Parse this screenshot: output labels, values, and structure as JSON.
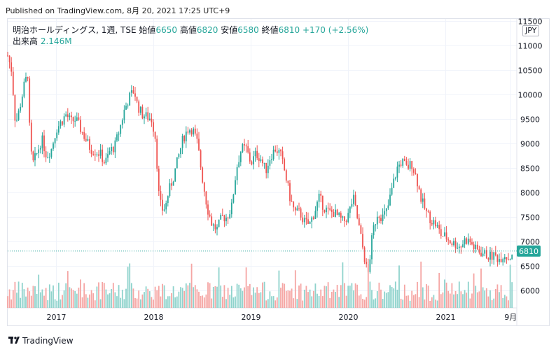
{
  "header": {
    "published": "Published on TradingView.com, 8月 20, 2021 17:25 UTC+9"
  },
  "legend": {
    "symbol": "明治ホールディングス, 1週, TSE",
    "open_label": "始値",
    "open": "6650",
    "high_label": "高値",
    "high": "6820",
    "low_label": "安値",
    "low": "6580",
    "close_label": "終値",
    "close": "6810",
    "change": "+170 (+2.56%)",
    "volume_label": "出来高",
    "volume": "2.146M"
  },
  "currency": "JPY",
  "footer": {
    "brand": "TradingView"
  },
  "colors": {
    "up": "#26a69a",
    "down": "#ef5350",
    "up_vol": "#8fd3cc",
    "down_vol": "#f5a6a4",
    "grid": "#f0f3fa"
  },
  "chart_data": {
    "type": "candlestick",
    "ylim": [
      5650,
      11550
    ],
    "y_ticks": [
      6000,
      6500,
      7000,
      7500,
      8000,
      8500,
      9000,
      9500,
      10000,
      10500,
      11000,
      11500
    ],
    "x_tick_labels": [
      "2017",
      "2018",
      "2019",
      "2020",
      "2021",
      "9月"
    ],
    "x_tick_positions": [
      2017.0,
      2018.0,
      2019.0,
      2020.0,
      2021.0,
      2021.667
    ],
    "xlim": [
      2016.5,
      2021.73
    ],
    "last_price": 6810,
    "path": [
      [
        2016.5,
        10800
      ],
      [
        2016.54,
        10500
      ],
      [
        2016.58,
        9400
      ],
      [
        2016.62,
        9700
      ],
      [
        2016.67,
        10200
      ],
      [
        2016.71,
        10450
      ],
      [
        2016.73,
        8900
      ],
      [
        2016.76,
        8600
      ],
      [
        2016.8,
        8800
      ],
      [
        2016.85,
        9100
      ],
      [
        2016.9,
        8750
      ],
      [
        2016.95,
        8900
      ],
      [
        2017.0,
        9300
      ],
      [
        2017.05,
        9450
      ],
      [
        2017.1,
        9600
      ],
      [
        2017.15,
        9450
      ],
      [
        2017.2,
        9500
      ],
      [
        2017.25,
        9300
      ],
      [
        2017.3,
        9100
      ],
      [
        2017.35,
        8900
      ],
      [
        2017.4,
        8850
      ],
      [
        2017.45,
        8800
      ],
      [
        2017.5,
        8600
      ],
      [
        2017.55,
        8850
      ],
      [
        2017.6,
        8950
      ],
      [
        2017.65,
        9300
      ],
      [
        2017.7,
        9700
      ],
      [
        2017.75,
        9950
      ],
      [
        2017.8,
        10100
      ],
      [
        2017.83,
        9800
      ],
      [
        2017.88,
        9600
      ],
      [
        2017.93,
        9550
      ],
      [
        2017.98,
        9500
      ],
      [
        2018.02,
        9100
      ],
      [
        2018.05,
        8000
      ],
      [
        2018.08,
        7650
      ],
      [
        2018.12,
        7700
      ],
      [
        2018.15,
        8000
      ],
      [
        2018.2,
        8300
      ],
      [
        2018.25,
        8700
      ],
      [
        2018.3,
        9100
      ],
      [
        2018.35,
        9300
      ],
      [
        2018.4,
        9300
      ],
      [
        2018.45,
        9000
      ],
      [
        2018.5,
        8300
      ],
      [
        2018.55,
        7700
      ],
      [
        2018.6,
        7350
      ],
      [
        2018.65,
        7250
      ],
      [
        2018.7,
        7500
      ],
      [
        2018.75,
        7500
      ],
      [
        2018.8,
        7700
      ],
      [
        2018.85,
        8500
      ],
      [
        2018.9,
        8900
      ],
      [
        2018.95,
        8900
      ],
      [
        2019.0,
        8600
      ],
      [
        2019.05,
        8800
      ],
      [
        2019.1,
        8700
      ],
      [
        2019.15,
        8450
      ],
      [
        2019.2,
        8750
      ],
      [
        2019.25,
        8900
      ],
      [
        2019.3,
        8800
      ],
      [
        2019.35,
        8400
      ],
      [
        2019.4,
        7900
      ],
      [
        2019.45,
        7600
      ],
      [
        2019.5,
        7600
      ],
      [
        2019.55,
        7400
      ],
      [
        2019.6,
        7350
      ],
      [
        2019.65,
        7600
      ],
      [
        2019.7,
        7900
      ],
      [
        2019.75,
        7700
      ],
      [
        2019.8,
        7600
      ],
      [
        2019.85,
        7600
      ],
      [
        2019.9,
        7500
      ],
      [
        2019.95,
        7400
      ],
      [
        2020.0,
        7550
      ],
      [
        2020.05,
        7900
      ],
      [
        2020.1,
        7400
      ],
      [
        2020.15,
        6850
      ],
      [
        2020.2,
        6300
      ],
      [
        2020.25,
        7200
      ],
      [
        2020.3,
        7600
      ],
      [
        2020.35,
        7500
      ],
      [
        2020.4,
        7650
      ],
      [
        2020.45,
        8100
      ],
      [
        2020.5,
        8500
      ],
      [
        2020.55,
        8650
      ],
      [
        2020.6,
        8500
      ],
      [
        2020.65,
        8600
      ],
      [
        2020.7,
        8300
      ],
      [
        2020.75,
        7850
      ],
      [
        2020.8,
        7600
      ],
      [
        2020.85,
        7450
      ],
      [
        2020.9,
        7350
      ],
      [
        2020.95,
        7150
      ],
      [
        2021.0,
        7100
      ],
      [
        2021.05,
        7000
      ],
      [
        2021.1,
        6950
      ],
      [
        2021.15,
        6900
      ],
      [
        2021.2,
        7050
      ],
      [
        2021.25,
        7000
      ],
      [
        2021.3,
        6850
      ],
      [
        2021.35,
        6800
      ],
      [
        2021.4,
        6750
      ],
      [
        2021.45,
        6700
      ],
      [
        2021.5,
        6720
      ],
      [
        2021.55,
        6650
      ],
      [
        2021.6,
        6750
      ],
      [
        2021.65,
        6650
      ],
      [
        2021.69,
        6810
      ]
    ]
  }
}
